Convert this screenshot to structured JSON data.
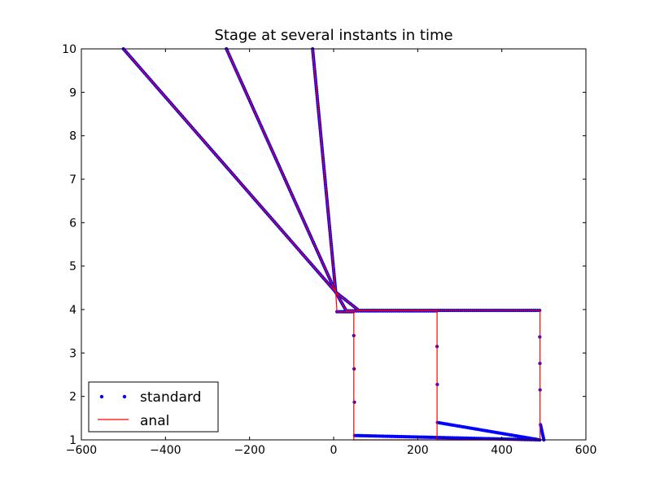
{
  "chart_data": {
    "type": "line",
    "title": "Stage at several instants in time",
    "xlabel": "",
    "ylabel": "",
    "xlim": [
      -600,
      600
    ],
    "ylim": [
      1,
      10
    ],
    "xticks": [
      "−600",
      "−400",
      "−200",
      "0",
      "200",
      "400",
      "600"
    ],
    "yticks": [
      "1",
      "2",
      "3",
      "4",
      "5",
      "6",
      "7",
      "8",
      "9",
      "10"
    ],
    "xtick_values": [
      -600,
      -400,
      -200,
      0,
      200,
      400,
      600
    ],
    "ytick_values": [
      1,
      2,
      3,
      4,
      5,
      6,
      7,
      8,
      9,
      10
    ],
    "grid": false,
    "legend_position": "lower-left",
    "legend": [
      {
        "label": "standard",
        "style": "dots",
        "color": "#0000ff"
      },
      {
        "label": "anal",
        "style": "line",
        "color": "#ff0000"
      }
    ],
    "series": [
      {
        "name": "standard",
        "instant": 1,
        "color": "#0000ff",
        "x": [
          -50,
          5,
          8,
          47,
          48,
          50,
          490
        ],
        "y": [
          10,
          4.4,
          3.95,
          3.95,
          3.4,
          1.1,
          1
        ]
      },
      {
        "name": "standard",
        "instant": 2,
        "color": "#0000ff",
        "x": [
          -255,
          5,
          30,
          245,
          246,
          247,
          490
        ],
        "y": [
          10,
          4.4,
          3.97,
          3.97,
          3.15,
          1.4,
          1
        ]
      },
      {
        "name": "standard",
        "instant": 3,
        "color": "#0000ff",
        "x": [
          -500,
          5,
          60,
          490,
          491,
          492,
          500
        ],
        "y": [
          10,
          4.4,
          3.98,
          3.98,
          2.15,
          1.35,
          1
        ]
      },
      {
        "name": "anal",
        "instant": 1,
        "color": "#ff0000",
        "x": [
          -50,
          5,
          8,
          48,
          48,
          490
        ],
        "y": [
          10,
          4.4,
          3.95,
          3.95,
          1,
          1
        ]
      },
      {
        "name": "anal",
        "instant": 2,
        "color": "#ff0000",
        "x": [
          -255,
          5,
          30,
          246,
          246,
          490
        ],
        "y": [
          10,
          4.4,
          3.97,
          3.97,
          1,
          1
        ]
      },
      {
        "name": "anal",
        "instant": 3,
        "color": "#ff0000",
        "x": [
          -500,
          5,
          60,
          491,
          491,
          500
        ],
        "y": [
          10,
          4.4,
          3.98,
          3.98,
          1,
          1
        ]
      }
    ]
  }
}
